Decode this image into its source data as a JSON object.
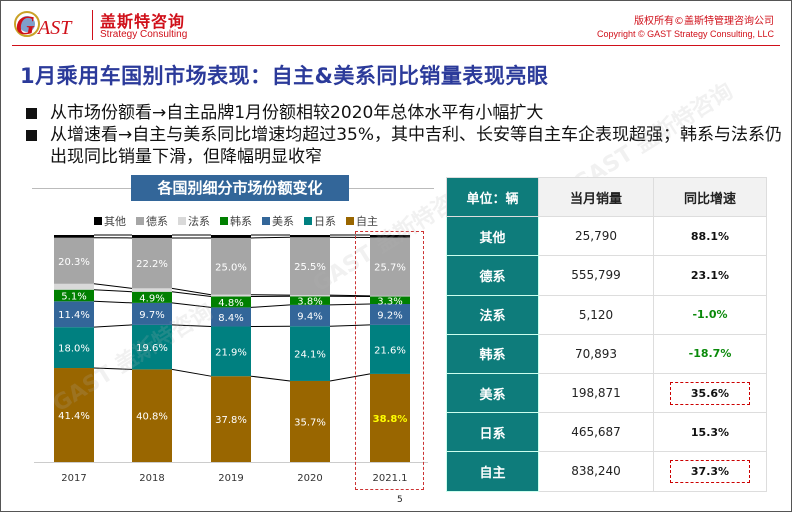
{
  "header": {
    "brand_cn": "盖斯特咨询",
    "brand_en": "Strategy Consulting",
    "copyright_cn": "版权所有©盖斯特管理咨询公司",
    "copyright_en": "Copyright © GAST Strategy Consulting, LLC",
    "logo_text": "GAST"
  },
  "title": "1月乘用车国别市场表现：自主&美系同比销量表现亮眼",
  "bullets": [
    "从市场份额看→自主品牌1月份额相较2020年总体水平有小幅扩大",
    "从增速看→自主与美系同比增速均超过35%，其中吉利、长安等自主车企表现超强；韩系与法系仍出现同比销量下滑，但降幅明显收窄"
  ],
  "watermark": "GAST 盖斯特咨询",
  "page_number": "5",
  "chart_data": {
    "type": "bar",
    "stacked": true,
    "title": "各国别细分市场份额变化",
    "categories": [
      "2017",
      "2018",
      "2019",
      "2020",
      "2021.1"
    ],
    "highlighted_category": "2021.1",
    "legend_position": "top",
    "series": [
      {
        "name": "自主",
        "color": "#996600",
        "values": [
          41.4,
          40.8,
          37.8,
          35.7,
          38.8
        ],
        "labels": [
          "41.4%",
          "40.8%",
          "37.8%",
          "35.7%",
          "38.8%"
        ]
      },
      {
        "name": "日系",
        "color": "#008080",
        "values": [
          18.0,
          19.6,
          21.9,
          24.1,
          21.6
        ],
        "labels": [
          "18.0%",
          "19.6%",
          "21.9%",
          "24.1%",
          "21.6%"
        ]
      },
      {
        "name": "美系",
        "color": "#336699",
        "values": [
          11.4,
          9.7,
          8.4,
          9.4,
          9.2
        ],
        "labels": [
          "11.4%",
          "9.7%",
          "8.4%",
          "9.4%",
          "9.2%"
        ]
      },
      {
        "name": "韩系",
        "color": "#008000",
        "values": [
          5.1,
          4.9,
          4.8,
          3.8,
          3.3
        ],
        "labels": [
          "5.1%",
          "4.9%",
          "4.8%",
          "3.8%",
          "3.3%"
        ]
      },
      {
        "name": "法系",
        "color": "#d9d9d9",
        "values": [
          2.6,
          1.5,
          0.8,
          0.5,
          0.3
        ],
        "labels": [
          "",
          "",
          "",
          "",
          ""
        ]
      },
      {
        "name": "德系",
        "color": "#a6a6a6",
        "values": [
          20.3,
          22.2,
          25.0,
          25.5,
          25.7
        ],
        "labels": [
          "20.3%",
          "22.2%",
          "25.0%",
          "25.5%",
          "25.7%"
        ]
      },
      {
        "name": "其他",
        "color": "#000000",
        "values": [
          1.2,
          1.3,
          1.3,
          1.0,
          1.1
        ],
        "labels": [
          "",
          "",
          "",
          "",
          ""
        ]
      }
    ],
    "legend_order": [
      "其他",
      "德系",
      "法系",
      "韩系",
      "美系",
      "日系",
      "自主"
    ],
    "ylim": [
      0,
      100
    ],
    "xlabel": "",
    "ylabel": ""
  },
  "table": {
    "headers": [
      "单位：辆",
      "当月销量",
      "同比增速"
    ],
    "rows": [
      {
        "name": "其他",
        "volume": "25,790",
        "yoy": "88.1%",
        "negative": false,
        "boxed": false
      },
      {
        "name": "德系",
        "volume": "555,799",
        "yoy": "23.1%",
        "negative": false,
        "boxed": false
      },
      {
        "name": "法系",
        "volume": "5,120",
        "yoy": "-1.0%",
        "negative": true,
        "boxed": false
      },
      {
        "name": "韩系",
        "volume": "70,893",
        "yoy": "-18.7%",
        "negative": true,
        "boxed": false
      },
      {
        "name": "美系",
        "volume": "198,871",
        "yoy": "35.6%",
        "negative": false,
        "boxed": true
      },
      {
        "name": "日系",
        "volume": "465,687",
        "yoy": "15.3%",
        "negative": false,
        "boxed": false
      },
      {
        "name": "自主",
        "volume": "838,240",
        "yoy": "37.3%",
        "negative": false,
        "boxed": true
      }
    ]
  }
}
